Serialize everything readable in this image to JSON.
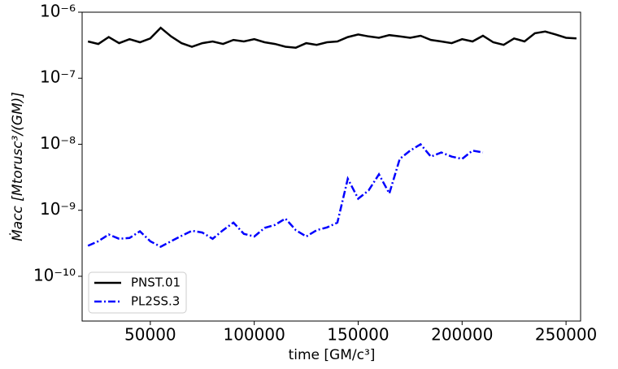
{
  "chart_data": {
    "type": "line",
    "xlabel": "time [GM/c³]",
    "ylabel": "Ṁacc  [Mtorusc³/(GM)]",
    "x": [
      20000,
      25000,
      30000,
      35000,
      40000,
      45000,
      50000,
      55000,
      60000,
      65000,
      70000,
      75000,
      80000,
      85000,
      90000,
      95000,
      100000,
      105000,
      110000,
      115000,
      120000,
      125000,
      130000,
      135000,
      140000,
      145000,
      150000,
      155000,
      160000,
      165000,
      170000,
      175000,
      180000,
      185000,
      190000,
      195000,
      200000,
      205000,
      210000,
      215000,
      220000,
      225000,
      230000,
      235000,
      240000,
      245000,
      250000,
      255000
    ],
    "series": [
      {
        "name": "PNST.01",
        "color": "#000000",
        "dash": "solid",
        "values": [
          3.6e-07,
          3.3e-07,
          4.2e-07,
          3.4e-07,
          3.9e-07,
          3.5e-07,
          4e-07,
          5.8e-07,
          4.3e-07,
          3.4e-07,
          3e-07,
          3.4e-07,
          3.6e-07,
          3.3e-07,
          3.8e-07,
          3.6e-07,
          3.9e-07,
          3.5e-07,
          3.3e-07,
          3e-07,
          2.9e-07,
          3.4e-07,
          3.2e-07,
          3.5e-07,
          3.6e-07,
          4.2e-07,
          4.6e-07,
          4.3e-07,
          4.1e-07,
          4.5e-07,
          4.3e-07,
          4.1e-07,
          4.4e-07,
          3.8e-07,
          3.6e-07,
          3.4e-07,
          3.9e-07,
          3.6e-07,
          4.4e-07,
          3.5e-07,
          3.2e-07,
          4e-07,
          3.6e-07,
          4.8e-07,
          5.1e-07,
          4.6e-07,
          4.1e-07,
          4e-07
        ]
      },
      {
        "name": "PL2SS.3",
        "color": "#0000ff",
        "dash": "dashdot",
        "values": [
          2.9e-10,
          3.4e-10,
          4.3e-10,
          3.7e-10,
          3.8e-10,
          4.8e-10,
          3.4e-10,
          2.8e-10,
          3.4e-10,
          4.1e-10,
          4.9e-10,
          4.6e-10,
          3.7e-10,
          5e-10,
          6.5e-10,
          4.4e-10,
          4e-10,
          5.4e-10,
          6e-10,
          7.5e-10,
          5e-10,
          4e-10,
          5e-10,
          5.5e-10,
          6.5e-10,
          3e-09,
          1.5e-09,
          2e-09,
          3.5e-09,
          1.8e-09,
          6e-09,
          8e-09,
          1e-08,
          6.5e-09,
          7.5e-09,
          6.5e-09,
          6e-09,
          8e-09,
          7.5e-09,
          null,
          null,
          null,
          null,
          null,
          null,
          null,
          null,
          null
        ]
      }
    ],
    "xlim": [
      17200,
      257000
    ],
    "xticks": [
      50000,
      100000,
      150000,
      200000,
      250000
    ],
    "ylim": [
      2.1e-11,
      1e-06
    ],
    "yscale": "log",
    "yticks": [
      {
        "value": 1e-10,
        "label": "10⁻¹⁰"
      },
      {
        "value": 1e-09,
        "label": "10⁻⁹"
      },
      {
        "value": 1e-08,
        "label": "10⁻⁸"
      },
      {
        "value": 1e-07,
        "label": "10⁻⁷"
      },
      {
        "value": 1e-06,
        "label": "10⁻⁶"
      }
    ],
    "legend": "lower left"
  }
}
